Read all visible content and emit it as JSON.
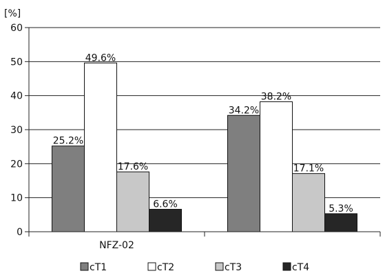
{
  "chart_data": {
    "type": "bar",
    "unit_label": "[%]",
    "categories": [
      "NFZ-02",
      ""
    ],
    "ylim": [
      0,
      60
    ],
    "yticks": [
      "0",
      "10",
      "20",
      "30",
      "40",
      "50",
      "60"
    ],
    "grid": true,
    "legend_position": "bottom",
    "series": [
      {
        "name": "cT1",
        "values": [
          25.2,
          34.2
        ],
        "labels": [
          "25.2%",
          "34.2%"
        ],
        "color": "#7f7f7f"
      },
      {
        "name": "cT2",
        "values": [
          49.6,
          38.2
        ],
        "labels": [
          "49.6%",
          "38.2%"
        ],
        "color": "#ffffff"
      },
      {
        "name": "cT3",
        "values": [
          17.6,
          17.1
        ],
        "labels": [
          "17.6%",
          "17.1%"
        ],
        "color": "#c8c8c8"
      },
      {
        "name": "cT4",
        "values": [
          6.6,
          5.3
        ],
        "labels": [
          "6.6%",
          "5.3%"
        ],
        "color": "#262626"
      }
    ]
  }
}
